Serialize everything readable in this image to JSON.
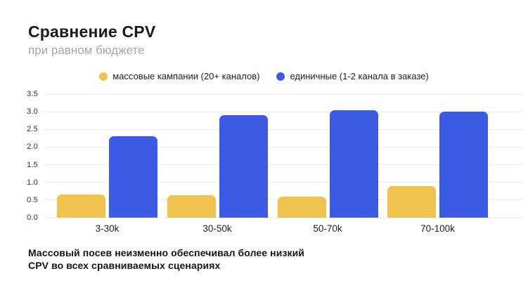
{
  "page": {
    "background_color": "#ffffff"
  },
  "header": {
    "title": "Сравнение CPV",
    "subtitle": "при равном бюджете"
  },
  "legend": {
    "items": [
      {
        "label": "массовые кампании (20+ каналов)",
        "color": "#F0C24E"
      },
      {
        "label": "единичные (1-2 канала в заказе)",
        "color": "#3D5BE2"
      }
    ]
  },
  "chart_data": {
    "type": "bar",
    "title": "Сравнение CPV",
    "subtitle": "при равном бюджете",
    "categories": [
      "3-30k",
      "30-50k",
      "50-70k",
      "70-100k"
    ],
    "series": [
      {
        "name": "массовые кампании (20+ каналов)",
        "color": "#F0C24E",
        "values": [
          0.65,
          0.63,
          0.6,
          0.9
        ]
      },
      {
        "name": "единичные (1-2 канала в заказе)",
        "color": "#3D5BE2",
        "values": [
          2.3,
          2.9,
          3.05,
          3.0
        ]
      }
    ],
    "xlabel": "",
    "ylabel": "",
    "ylim": [
      0,
      3.5
    ],
    "ytick_step": 0.5,
    "yticks": [
      "0.0",
      "0.5",
      "1.0",
      "1.5",
      "2.0",
      "2.5",
      "3.0",
      "3.5"
    ],
    "grid": true,
    "gridline_color": "#ebebeb",
    "legend_position": "top-center"
  },
  "footnote": {
    "lines": [
      "Массовый посев неизменно обеспечивал более низкий",
      "CPV во всех сравниваемых сценариях"
    ]
  }
}
